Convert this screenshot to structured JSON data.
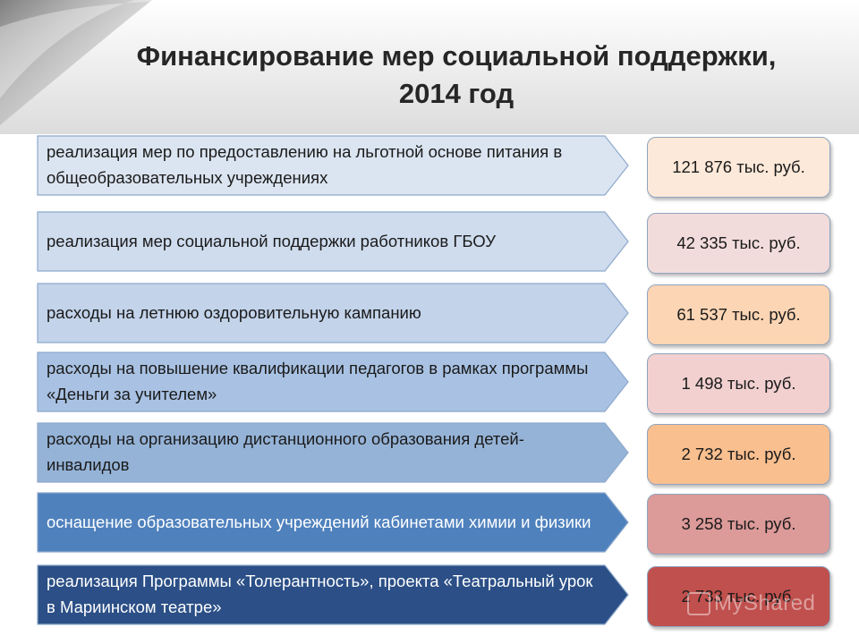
{
  "slide": {
    "title_line1": "Финансирование мер социальной поддержки,",
    "title_line2": "2014 год"
  },
  "items": [
    {
      "label": "реализация мер по предоставлению на льготной основе питания  в общеобразовательных учреждениях",
      "value": "121 876 тыс. руб.",
      "arrow_color": "#dbe5f1",
      "box_color": "#fde9d9",
      "text_color": "#1a1a1a"
    },
    {
      "label": "реализация мер социальной поддержки работников ГБОУ",
      "value": "42 335 тыс. руб.",
      "arrow_color": "#cfdcee",
      "box_color": "#f2dcdb",
      "text_color": "#1a1a1a"
    },
    {
      "label": "расходы на  летнюю оздоровительную кампанию",
      "value": "61 537 тыс. руб.",
      "arrow_color": "#c2d3ea",
      "box_color": "#fcd5b4",
      "text_color": "#1a1a1a"
    },
    {
      "label": "расходы на повышение квалификации педагогов  в рамках программы «Деньги за учителем»",
      "value": "1 498 тыс. руб.",
      "arrow_color": "#a9c2e3",
      "box_color": "#f2d0d0",
      "text_color": "#1a1a1a"
    },
    {
      "label": "расходы на организацию дистанционного образования детей-инвалидов",
      "value": "2 732 тыс. руб.",
      "arrow_color": "#95b3d7",
      "box_color": "#fabf8f",
      "text_color": "#1a1a1a"
    },
    {
      "label": "оснащение образовательных учреждений кабинетами химии и физики",
      "value": "3 258 тыс. руб.",
      "arrow_color": "#4f81bd",
      "box_color": "#dc9a99",
      "text_color": "#ffffff"
    },
    {
      "label": "реализация Программы «Толерантность», проекта «Театральный урок  в Мариинском театре»",
      "value": "2 733 тыс. руб.",
      "arrow_color": "#2b4f86",
      "box_color": "#c0504d",
      "text_color": "#ffffff"
    }
  ],
  "watermark": "MyShared"
}
